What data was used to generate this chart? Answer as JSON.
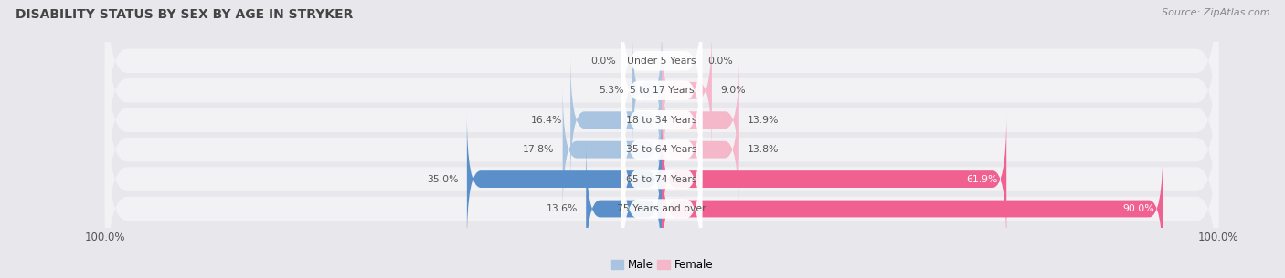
{
  "title": "DISABILITY STATUS BY SEX BY AGE IN STRYKER",
  "source": "Source: ZipAtlas.com",
  "categories": [
    "Under 5 Years",
    "5 to 17 Years",
    "18 to 34 Years",
    "35 to 64 Years",
    "65 to 74 Years",
    "75 Years and over"
  ],
  "male_values": [
    0.0,
    5.3,
    16.4,
    17.8,
    35.0,
    13.6
  ],
  "female_values": [
    0.0,
    9.0,
    13.9,
    13.8,
    61.9,
    90.0
  ],
  "male_color_light": "#a8c4e0",
  "male_color_dark": "#5b8fc9",
  "female_color_light": "#f5b8cb",
  "female_color_dark": "#f06090",
  "bg_color": "#e8e8ec",
  "row_bg_color": "#f2f2f5",
  "label_bg_color": "#ffffff",
  "title_color": "#444444",
  "text_color": "#555555",
  "value_color": "#555555",
  "max_val": 100.0,
  "legend_male": "Male",
  "legend_female": "Female"
}
